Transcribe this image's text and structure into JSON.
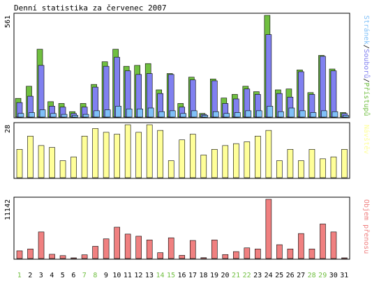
{
  "title": "Denní statistika za červenec 2007",
  "colors": {
    "background": "#ffffff",
    "frame": "#000000",
    "hits": "#70bf40",
    "files": "#8080f0",
    "pages": "#80c0f8",
    "visits": "#ffff99",
    "kbytes": "#f08080",
    "weekend_label": "#70bf40",
    "weekday_label": "#000000"
  },
  "chart_data": [
    {
      "type": "bar",
      "name": "hits-files-pages",
      "categories": [
        "1",
        "2",
        "3",
        "4",
        "5",
        "6",
        "7",
        "8",
        "9",
        "10",
        "11",
        "12",
        "13",
        "14",
        "15",
        "16",
        "17",
        "18",
        "19",
        "20",
        "21",
        "22",
        "23",
        "24",
        "25",
        "26",
        "27",
        "28",
        "29",
        "30",
        "31"
      ],
      "ymax_label": "561",
      "ylim": [
        0,
        561
      ],
      "legend": [
        {
          "label": "Stránek",
          "color": "#80c0f8"
        },
        {
          "label": "/",
          "color": "#000000"
        },
        {
          "label": "Souborů",
          "color": "#8080f0"
        },
        {
          "label": "/",
          "color": "#000000"
        },
        {
          "label": "Přístupů",
          "color": "#70bf40"
        }
      ],
      "series": [
        {
          "name": "Přístupů",
          "values": [
            103,
            170,
            374,
            85,
            75,
            30,
            75,
            180,
            305,
            374,
            280,
            285,
            295,
            150,
            240,
            75,
            220,
            20,
            210,
            105,
            125,
            170,
            140,
            561,
            150,
            155,
            260,
            135,
            340,
            265,
            25
          ]
        },
        {
          "name": "Souborů",
          "values": [
            80,
            115,
            285,
            60,
            55,
            20,
            55,
            165,
            280,
            330,
            255,
            235,
            240,
            130,
            235,
            55,
            205,
            15,
            200,
            75,
            100,
            155,
            125,
            455,
            130,
            110,
            250,
            125,
            335,
            255,
            20
          ]
        },
        {
          "name": "Stránek",
          "values": [
            20,
            25,
            40,
            20,
            15,
            10,
            15,
            35,
            40,
            60,
            45,
            45,
            50,
            30,
            35,
            20,
            35,
            10,
            30,
            20,
            25,
            35,
            35,
            60,
            30,
            50,
            35,
            25,
            35,
            30,
            10
          ]
        }
      ]
    },
    {
      "type": "bar",
      "name": "visits",
      "categories": [
        "1",
        "2",
        "3",
        "4",
        "5",
        "6",
        "7",
        "8",
        "9",
        "10",
        "11",
        "12",
        "13",
        "14",
        "15",
        "16",
        "17",
        "18",
        "19",
        "20",
        "21",
        "22",
        "23",
        "24",
        "25",
        "26",
        "27",
        "28",
        "29",
        "30",
        "31"
      ],
      "ymax_label": "28",
      "ylim": [
        0,
        28
      ],
      "legend": [
        {
          "label": "Návštěv",
          "color": "#ffff99"
        }
      ],
      "series": [
        {
          "name": "Návštěv",
          "values": [
            15,
            22,
            17,
            16,
            9,
            11,
            22,
            26,
            24,
            23,
            28,
            24,
            28,
            25,
            9,
            20,
            23,
            12,
            15,
            17,
            18,
            19,
            22,
            25,
            9,
            15,
            9,
            15,
            10,
            11,
            15
          ]
        }
      ]
    },
    {
      "type": "bar",
      "name": "kbytes",
      "categories": [
        "1",
        "2",
        "3",
        "4",
        "5",
        "6",
        "7",
        "8",
        "9",
        "10",
        "11",
        "12",
        "13",
        "14",
        "15",
        "16",
        "17",
        "18",
        "19",
        "20",
        "21",
        "22",
        "23",
        "24",
        "25",
        "26",
        "27",
        "28",
        "29",
        "30",
        "31"
      ],
      "ymax_label": "11142",
      "ylim": [
        0,
        11142
      ],
      "legend": [
        {
          "label": "Objem přenosu",
          "color": "#f08080"
        }
      ],
      "series": [
        {
          "name": "Objem přenosu",
          "values": [
            1450,
            1800,
            5000,
            800,
            550,
            80,
            700,
            2300,
            3700,
            5900,
            4600,
            4200,
            3500,
            1100,
            3900,
            600,
            3400,
            160,
            3500,
            750,
            1300,
            2000,
            1800,
            11142,
            2600,
            1800,
            4700,
            1800,
            6500,
            5000,
            100
          ]
        }
      ]
    }
  ],
  "weekend_days": [
    "1",
    "7",
    "8",
    "14",
    "15",
    "21",
    "22",
    "28",
    "29"
  ]
}
